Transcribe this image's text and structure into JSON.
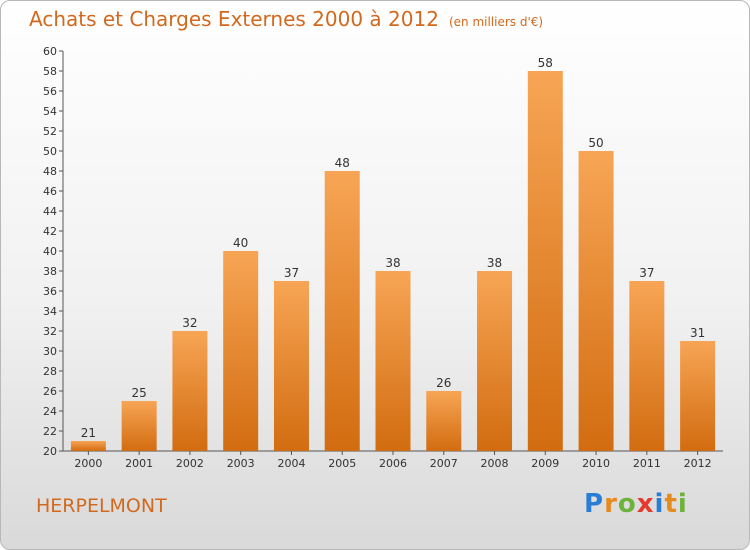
{
  "chart_data": {
    "type": "bar",
    "title": "Achats et Charges Externes 2000 à 2012",
    "subtitle": "(en milliers d'€)",
    "categories": [
      "2000",
      "2001",
      "2002",
      "2003",
      "2004",
      "2005",
      "2006",
      "2007",
      "2008",
      "2009",
      "2010",
      "2011",
      "2012"
    ],
    "values": [
      21,
      25,
      32,
      40,
      37,
      48,
      38,
      26,
      38,
      58,
      50,
      37,
      31
    ],
    "ylim": [
      20,
      60
    ],
    "ytick_step": 2,
    "grid": false,
    "bar_color_top": "#f7a555",
    "bar_color_bottom": "#d26c10"
  },
  "place_name": "HERPELMONT",
  "logo": {
    "letters": [
      "P",
      "r",
      "o",
      "x",
      "i",
      "t",
      "i"
    ],
    "colors": [
      "#2a7dd6",
      "#e68a1e",
      "#6db23a",
      "#e63a2e",
      "#2a7dd6",
      "#e68a1e",
      "#6db23a"
    ]
  }
}
